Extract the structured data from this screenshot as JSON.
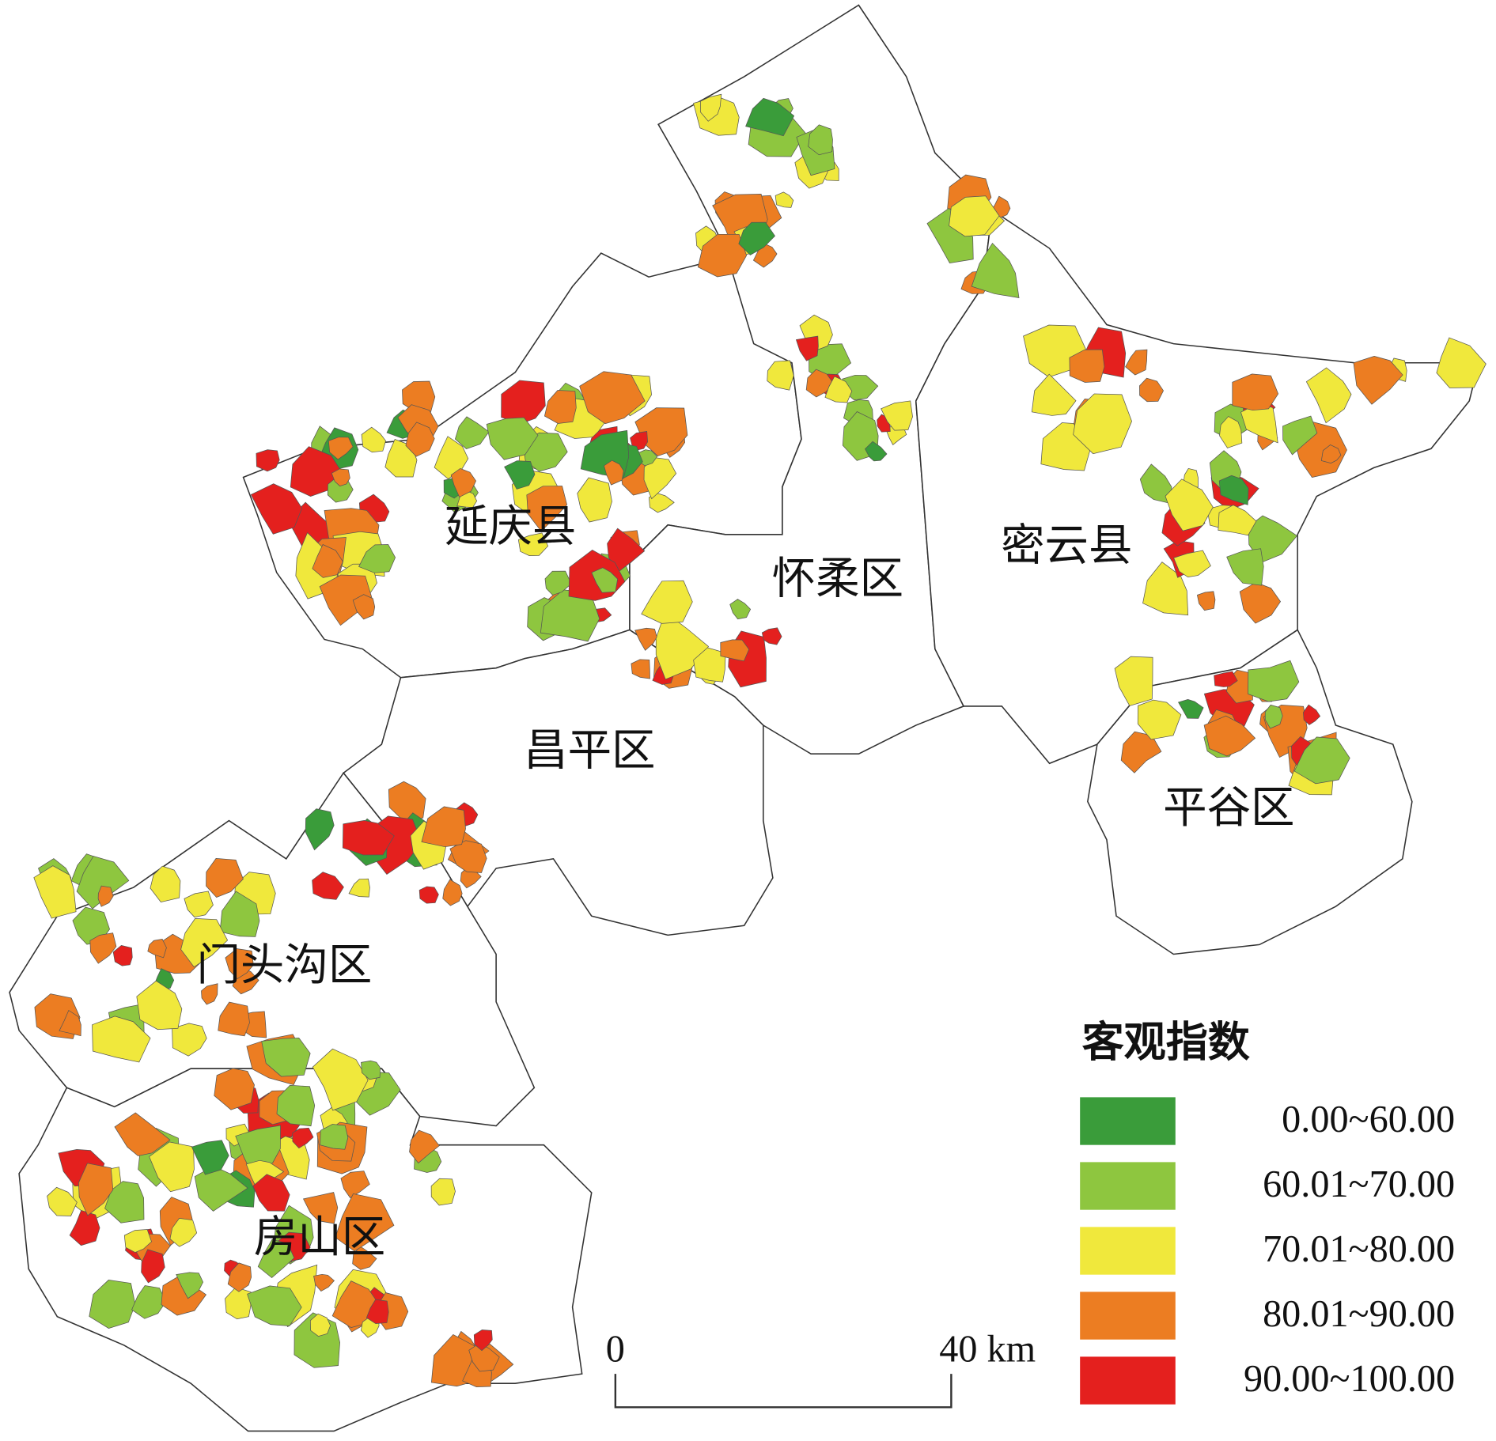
{
  "districts": [
    {
      "label": "延庆县"
    },
    {
      "label": "怀柔区"
    },
    {
      "label": "密云县"
    },
    {
      "label": "昌平区"
    },
    {
      "label": "平谷区"
    },
    {
      "label": "门头沟区"
    },
    {
      "label": "房山区"
    }
  ],
  "legend": {
    "title": "客观指数",
    "items": [
      {
        "label": "0.00~60.00",
        "color": "#3a9c3a"
      },
      {
        "label": "60.01~70.00",
        "color": "#8ec63f"
      },
      {
        "label": "70.01~80.00",
        "color": "#f0e83c"
      },
      {
        "label": "80.01~90.00",
        "color": "#ec7d22"
      },
      {
        "label": "90.00~100.00",
        "color": "#e4201e"
      }
    ]
  },
  "scale_bar": {
    "start": "0",
    "end": "40 km"
  }
}
